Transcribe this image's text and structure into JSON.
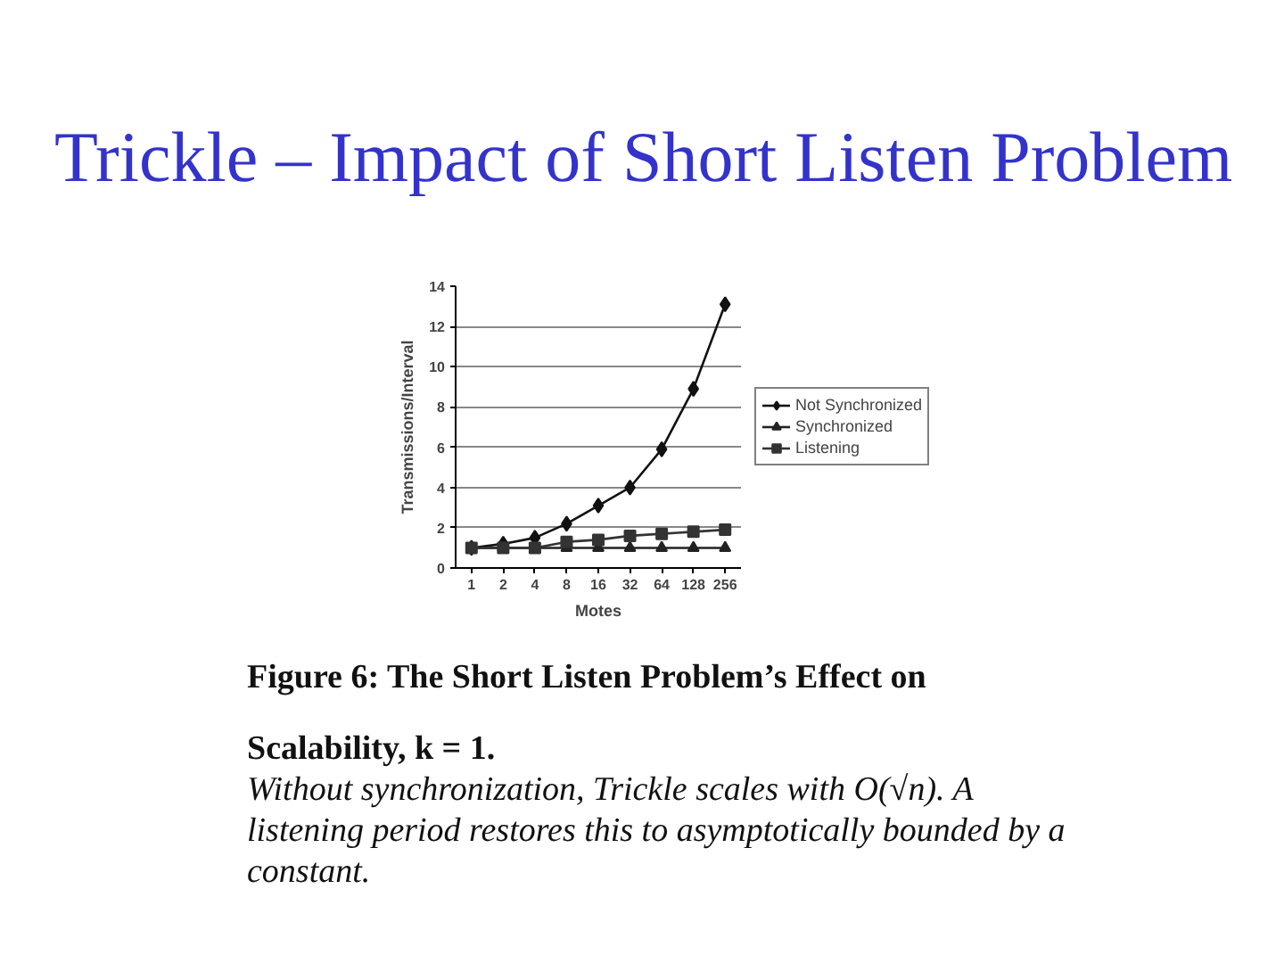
{
  "chart_data": {
    "type": "line",
    "title": "Trickle – Impact of Short Listen Problem",
    "xlabel": "Motes",
    "ylabel": "Transmissions/Interval",
    "categories": [
      "1",
      "2",
      "4",
      "8",
      "16",
      "32",
      "64",
      "128",
      "256"
    ],
    "ylim": [
      0,
      14
    ],
    "yticks": [
      0,
      2,
      4,
      6,
      8,
      10,
      12,
      14
    ],
    "grid": "y",
    "legend": "right",
    "line_style": "solid",
    "series": [
      {
        "name": "Not Synchronized",
        "color": "#111111",
        "marker": "diamond",
        "values": [
          1.0,
          1.2,
          1.5,
          2.2,
          3.1,
          4.0,
          5.9,
          8.9,
          13.1
        ]
      },
      {
        "name": "Synchronized",
        "color": "#222222",
        "marker": "triangle",
        "values": [
          1.0,
          1.0,
          1.0,
          1.0,
          1.0,
          1.0,
          1.0,
          1.0,
          1.0
        ]
      },
      {
        "name": "Listening",
        "color": "#333333",
        "marker": "square",
        "values": [
          1.0,
          1.0,
          1.0,
          1.3,
          1.4,
          1.6,
          1.7,
          1.8,
          1.9
        ]
      }
    ],
    "annotations": [
      "Figure 6: The Short Listen Problem’s Effect on Scalability, k = 1.",
      "Without synchronization, Trickle scales with O(√n). A listening period restores this to asymptotically bounded by a constant."
    ]
  }
}
